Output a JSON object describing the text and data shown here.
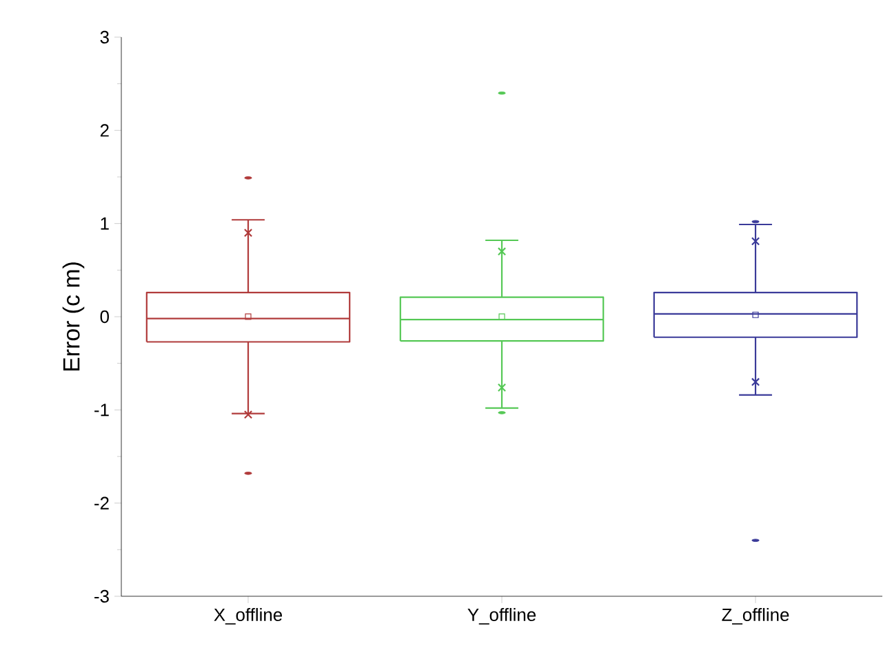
{
  "chart_data": {
    "type": "box",
    "ylabel": "Error (c m)",
    "categories": [
      "X_offline",
      "Y_offline",
      "Z_offline"
    ],
    "colors": [
      "#b03a3a",
      "#55c855",
      "#3a3a99"
    ],
    "boxes": [
      {
        "low": -1.04,
        "q1": -0.27,
        "median": -0.02,
        "q3": 0.26,
        "high": 1.04,
        "mean": 0.0,
        "outliers": [
          1.49,
          0.9,
          -1.05,
          -1.68
        ]
      },
      {
        "low": -0.98,
        "q1": -0.26,
        "median": -0.03,
        "q3": 0.21,
        "high": 0.82,
        "mean": 0.0,
        "outliers": [
          2.4,
          0.7,
          -0.76,
          -1.03
        ]
      },
      {
        "low": -0.84,
        "q1": -0.22,
        "median": 0.03,
        "q3": 0.26,
        "high": 0.99,
        "mean": 0.02,
        "outliers": [
          1.02,
          0.81,
          -0.7,
          -2.4
        ]
      }
    ],
    "ylim": [
      -3,
      3
    ],
    "yticks": [
      -3,
      -2,
      -1,
      0,
      1,
      2,
      3
    ],
    "grid": false
  }
}
